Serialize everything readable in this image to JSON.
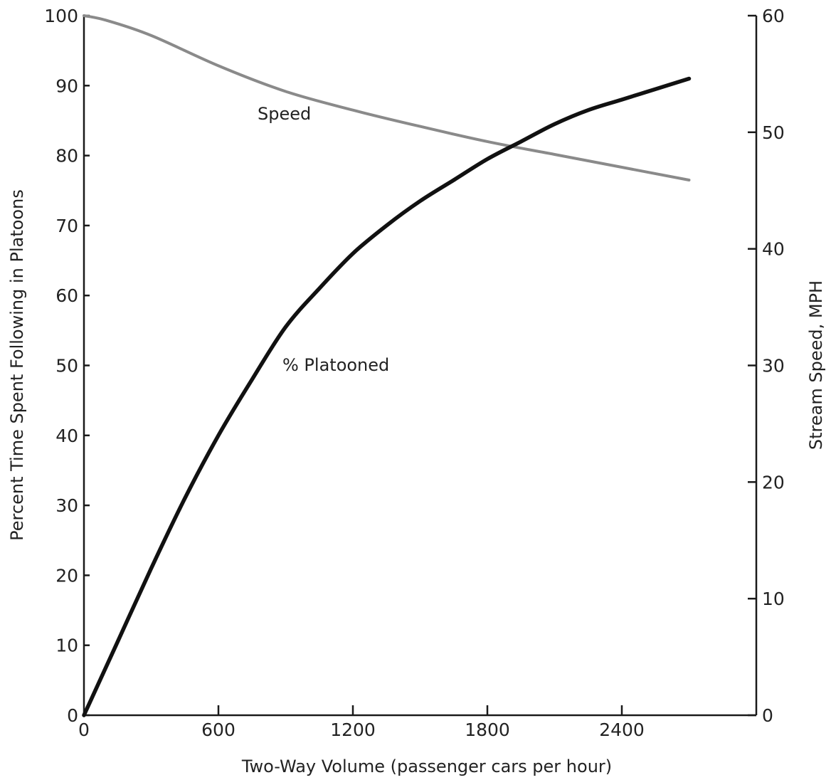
{
  "chart_data": {
    "type": "line",
    "title": "",
    "xlabel": "Two-Way Volume (passenger cars per hour)",
    "ylabel_left": "Percent Time Spent Following in Platoons",
    "ylabel_right": "Stream Speed, MPH",
    "xlim": [
      0,
      3000
    ],
    "ylim_left": [
      0,
      100
    ],
    "ylim_right": [
      0,
      60
    ],
    "x_ticks": [
      "0",
      "600",
      "1200",
      "1800",
      "2400"
    ],
    "y_left_ticks": [
      "0",
      "10",
      "20",
      "30",
      "40",
      "50",
      "60",
      "70",
      "80",
      "90",
      "100"
    ],
    "y_right_ticks": [
      "0",
      "10",
      "20",
      "30",
      "40",
      "50",
      "60"
    ],
    "grid": false,
    "series": [
      {
        "name": "Speed",
        "axis": "right",
        "color": "#8a8a8a",
        "x": [
          0,
          100,
          300,
          600,
          900,
          1200,
          1500,
          1800,
          2100,
          2400,
          2700
        ],
        "y": [
          60,
          59.6,
          58.3,
          55.7,
          53.5,
          51.9,
          50.5,
          49.2,
          48.1,
          47.0,
          45.9
        ]
      },
      {
        "name": "% Platooned",
        "axis": "left",
        "color": "#111111",
        "x": [
          0,
          150,
          300,
          450,
          600,
          750,
          900,
          1050,
          1200,
          1350,
          1500,
          1650,
          1800,
          1950,
          2100,
          2250,
          2400,
          2550,
          2700
        ],
        "y": [
          0,
          10.5,
          21,
          31,
          40,
          48,
          55.5,
          61,
          66,
          70,
          73.5,
          76.5,
          79.5,
          82,
          84.5,
          86.5,
          88,
          89.5,
          91
        ]
      }
    ]
  }
}
